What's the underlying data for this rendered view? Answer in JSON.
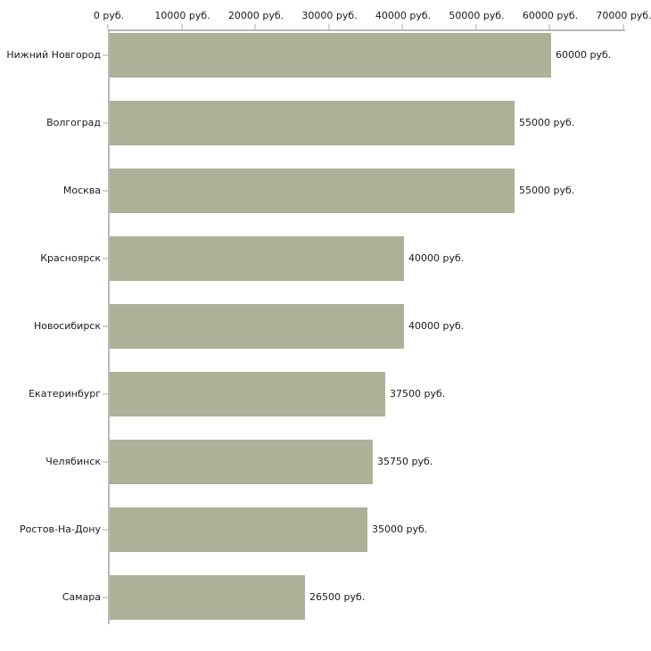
{
  "chart_data": {
    "type": "bar",
    "orientation": "horizontal",
    "title": "",
    "categories": [
      "Нижний Новгород",
      "Волгоград",
      "Москва",
      "Красноярск",
      "Новосибирск",
      "Екатеринбург",
      "Челябинск",
      "Ростов-На-Дону",
      "Самара"
    ],
    "values": [
      60000,
      55000,
      55000,
      40000,
      40000,
      37500,
      35750,
      35000,
      26500
    ],
    "bar_labels": [
      "60000 руб.",
      "55000 руб.",
      "55000 руб.",
      "40000 руб.",
      "40000 руб.",
      "37500 руб.",
      "35750 руб.",
      "35000 руб.",
      "26500 руб."
    ],
    "x_axis": {
      "position": "top",
      "tick_values": [
        0,
        10000,
        20000,
        30000,
        40000,
        50000,
        60000,
        70000
      ],
      "tick_labels": [
        "0 руб.",
        "10000 руб.",
        "20000 руб.",
        "30000 руб.",
        "40000 руб.",
        "50000 руб.",
        "60000 руб.",
        "70000 руб."
      ],
      "range": [
        0,
        70000
      ],
      "unit": "руб."
    },
    "grid": false,
    "legend": false,
    "colors": {
      "bar": "#abb298",
      "axis": "#b9b9b9",
      "tick": "#d8d8bf",
      "text": "#1a1a1a",
      "background": "#ffffff"
    }
  }
}
